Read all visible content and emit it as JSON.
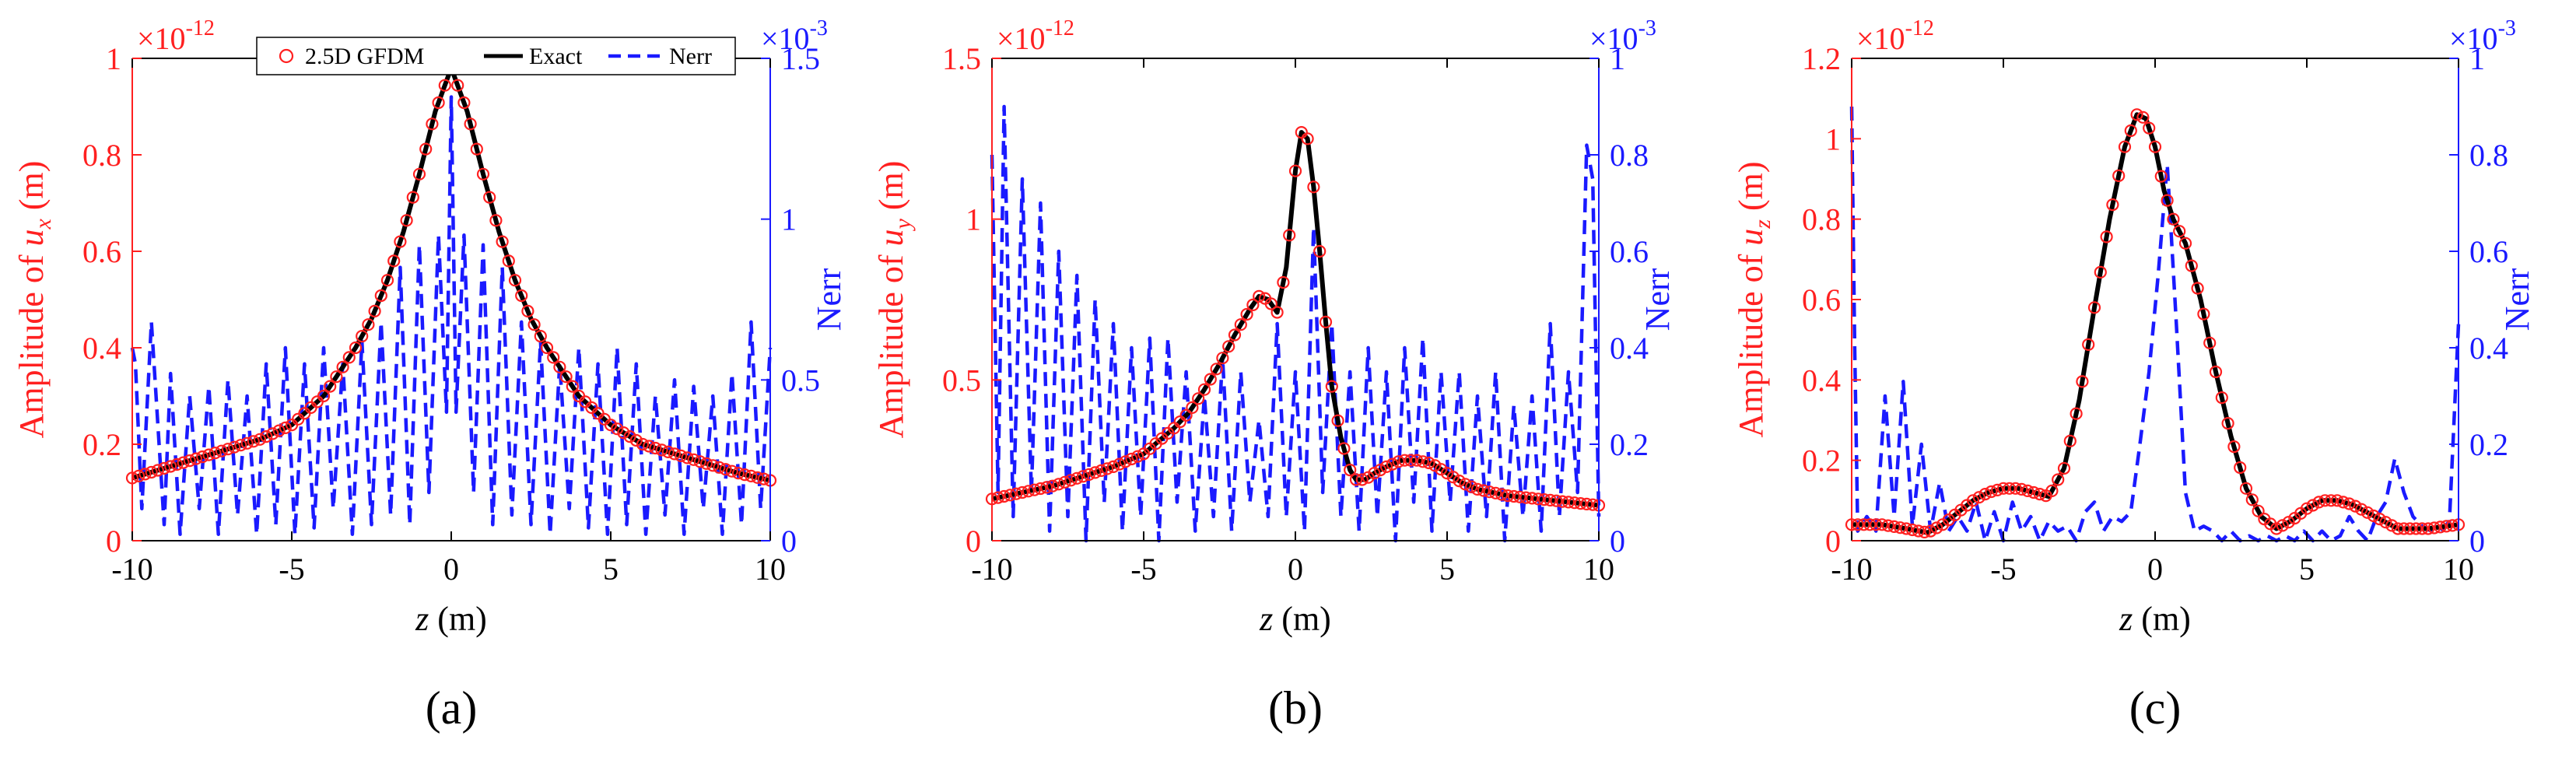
{
  "colors": {
    "amplitude": "#ff2020",
    "exact": "#000000",
    "nerr": "#1a1aff",
    "axis": "#000000"
  },
  "legend": {
    "gfdm": "2.5D GFDM",
    "exact": "Exact",
    "nerr": "Nerr"
  },
  "chart_data": [
    {
      "type": "line",
      "caption": "(a)",
      "xlabel_var": "z",
      "xlabel_unit": " (m)",
      "ylabel_left_prefix": "Amplitude of ",
      "ylabel_left_var": "u",
      "ylabel_left_sub": "x",
      "ylabel_left_unit": " (m)",
      "ylabel_right": "Nerr",
      "left_multiplier": "×10",
      "left_exponent": "-12",
      "right_multiplier": "×10",
      "right_exponent": "-3",
      "xlim": [
        -10,
        10
      ],
      "ylim_left": [
        0,
        1.0
      ],
      "ylim_right": [
        0,
        1.5
      ],
      "xticks": [
        -10,
        -5,
        0,
        5,
        10
      ],
      "xtick_labels": [
        "-10",
        "-5",
        "0",
        "5",
        "10"
      ],
      "yticks_left": [
        0,
        0.2,
        0.4,
        0.6,
        0.8,
        1.0
      ],
      "ytick_labels_left": [
        "0",
        "0.2",
        "0.4",
        "0.6",
        "0.8",
        "1"
      ],
      "yticks_right": [
        0,
        0.5,
        1.0,
        1.5
      ],
      "ytick_labels_right": [
        "0",
        "0.5",
        "1",
        "1.5"
      ],
      "has_legend": true,
      "series": [
        {
          "name": "Exact",
          "x": [
            -10,
            -9,
            -8,
            -7,
            -6,
            -5,
            -4,
            -3,
            -2.5,
            -2,
            -1.5,
            -1,
            -0.5,
            0,
            0.5,
            1,
            1.5,
            2,
            2.5,
            3,
            4,
            5,
            6,
            7,
            8,
            9,
            10
          ],
          "values": [
            0.13,
            0.15,
            0.17,
            0.19,
            0.21,
            0.24,
            0.3,
            0.4,
            0.46,
            0.54,
            0.64,
            0.76,
            0.89,
            0.98,
            0.89,
            0.76,
            0.64,
            0.54,
            0.46,
            0.4,
            0.3,
            0.24,
            0.2,
            0.18,
            0.16,
            0.14,
            0.125
          ]
        },
        {
          "name": "Nerr",
          "x": [
            -10,
            -9.9,
            -9.7,
            -9.4,
            -9.0,
            -8.8,
            -8.5,
            -8.2,
            -7.9,
            -7.6,
            -7.3,
            -7.0,
            -6.7,
            -6.4,
            -6.1,
            -5.8,
            -5.5,
            -5.2,
            -4.9,
            -4.6,
            -4.3,
            -4.0,
            -3.7,
            -3.4,
            -3.1,
            -2.8,
            -2.5,
            -2.2,
            -1.9,
            -1.6,
            -1.3,
            -1.0,
            -0.7,
            -0.4,
            -0.15,
            0.0,
            0.15,
            0.4,
            0.7,
            1.0,
            1.3,
            1.6,
            1.9,
            2.2,
            2.5,
            2.8,
            3.1,
            3.4,
            3.7,
            4.0,
            4.3,
            4.6,
            4.9,
            5.2,
            5.5,
            5.8,
            6.1,
            6.4,
            6.7,
            7.0,
            7.3,
            7.6,
            7.9,
            8.2,
            8.5,
            8.8,
            9.1,
            9.4,
            9.7,
            10.0
          ],
          "values": [
            0.6,
            0.55,
            0.1,
            0.68,
            0.05,
            0.52,
            0.02,
            0.45,
            0.1,
            0.48,
            0.02,
            0.5,
            0.08,
            0.45,
            0.02,
            0.55,
            0.05,
            0.6,
            0.02,
            0.55,
            0.04,
            0.6,
            0.1,
            0.55,
            0.02,
            0.62,
            0.05,
            0.68,
            0.08,
            0.85,
            0.05,
            0.92,
            0.15,
            0.95,
            0.4,
            1.38,
            0.4,
            0.95,
            0.15,
            0.92,
            0.05,
            0.85,
            0.08,
            0.68,
            0.05,
            0.62,
            0.02,
            0.55,
            0.1,
            0.6,
            0.04,
            0.55,
            0.02,
            0.6,
            0.05,
            0.55,
            0.02,
            0.45,
            0.08,
            0.5,
            0.02,
            0.48,
            0.1,
            0.45,
            0.02,
            0.52,
            0.05,
            0.68,
            0.1,
            0.6
          ]
        }
      ]
    },
    {
      "type": "line",
      "caption": "(b)",
      "xlabel_var": "z",
      "xlabel_unit": " (m)",
      "ylabel_left_prefix": "Amplitude of ",
      "ylabel_left_var": "u",
      "ylabel_left_sub": "y",
      "ylabel_left_unit": " (m)",
      "ylabel_right": "Nerr",
      "left_multiplier": "×10",
      "left_exponent": "-12",
      "right_multiplier": "×10",
      "right_exponent": "-3",
      "xlim": [
        -10,
        10
      ],
      "ylim_left": [
        0,
        1.5
      ],
      "ylim_right": [
        0,
        1.0
      ],
      "xticks": [
        -10,
        -5,
        0,
        5,
        10
      ],
      "xtick_labels": [
        "-10",
        "-5",
        "0",
        "5",
        "10"
      ],
      "yticks_left": [
        0,
        0.5,
        1.0,
        1.5
      ],
      "ytick_labels_left": [
        "0",
        "0.5",
        "1",
        "1.5"
      ],
      "yticks_right": [
        0,
        0.2,
        0.4,
        0.6,
        0.8,
        1.0
      ],
      "ytick_labels_right": [
        "0",
        "0.2",
        "0.4",
        "0.6",
        "0.8",
        "1"
      ],
      "has_legend": false,
      "series": [
        {
          "name": "Exact",
          "x": [
            -10,
            -9,
            -8,
            -7,
            -6,
            -5,
            -4,
            -3.5,
            -3,
            -2.5,
            -2,
            -1.5,
            -1.2,
            -0.9,
            -0.6,
            -0.3,
            0,
            0.2,
            0.4,
            0.6,
            0.8,
            1.0,
            1.2,
            1.5,
            1.8,
            2.0,
            2.3,
            2.6,
            3,
            3.5,
            4,
            4.5,
            5,
            5.5,
            6,
            7,
            8,
            9,
            10
          ],
          "values": [
            0.13,
            0.15,
            0.17,
            0.2,
            0.23,
            0.27,
            0.35,
            0.4,
            0.47,
            0.55,
            0.64,
            0.72,
            0.76,
            0.75,
            0.71,
            0.85,
            1.15,
            1.27,
            1.25,
            1.1,
            0.9,
            0.68,
            0.48,
            0.32,
            0.22,
            0.19,
            0.19,
            0.21,
            0.23,
            0.25,
            0.25,
            0.24,
            0.21,
            0.18,
            0.16,
            0.14,
            0.13,
            0.12,
            0.11
          ]
        },
        {
          "name": "Nerr",
          "x": [
            -10,
            -9.8,
            -9.6,
            -9.3,
            -9.0,
            -8.7,
            -8.4,
            -8.1,
            -7.8,
            -7.5,
            -7.2,
            -6.9,
            -6.6,
            -6.3,
            -6.0,
            -5.7,
            -5.4,
            -5.1,
            -4.8,
            -4.5,
            -4.2,
            -3.9,
            -3.6,
            -3.3,
            -3.0,
            -2.7,
            -2.4,
            -2.1,
            -1.8,
            -1.5,
            -1.2,
            -0.9,
            -0.6,
            -0.3,
            0.0,
            0.3,
            0.6,
            0.9,
            1.2,
            1.5,
            1.8,
            2.1,
            2.4,
            2.7,
            3.0,
            3.3,
            3.6,
            3.9,
            4.2,
            4.5,
            4.8,
            5.1,
            5.4,
            5.7,
            6.0,
            6.3,
            6.6,
            6.9,
            7.2,
            7.5,
            7.8,
            8.1,
            8.4,
            8.7,
            9.0,
            9.3,
            9.6,
            9.8,
            10.0
          ],
          "values": [
            0.8,
            0.1,
            0.9,
            0.05,
            0.75,
            0.1,
            0.7,
            0.02,
            0.6,
            0.05,
            0.55,
            0.0,
            0.5,
            0.08,
            0.45,
            0.02,
            0.4,
            0.05,
            0.42,
            0.0,
            0.42,
            0.08,
            0.35,
            0.02,
            0.3,
            0.05,
            0.38,
            0.02,
            0.35,
            0.08,
            0.25,
            0.05,
            0.45,
            0.05,
            0.35,
            0.02,
            0.65,
            0.1,
            0.45,
            0.05,
            0.35,
            0.02,
            0.4,
            0.05,
            0.35,
            0.0,
            0.4,
            0.08,
            0.42,
            0.02,
            0.35,
            0.08,
            0.35,
            0.02,
            0.3,
            0.05,
            0.35,
            0.0,
            0.28,
            0.05,
            0.3,
            0.02,
            0.45,
            0.05,
            0.35,
            0.1,
            0.82,
            0.75,
            0.05
          ]
        }
      ]
    },
    {
      "type": "line",
      "caption": "(c)",
      "xlabel_var": "z",
      "xlabel_unit": " (m)",
      "ylabel_left_prefix": "Amplitude of ",
      "ylabel_left_var": "u",
      "ylabel_left_sub": "z",
      "ylabel_left_unit": " (m)",
      "ylabel_right": "Nerr",
      "left_multiplier": "×10",
      "left_exponent": "-12",
      "right_multiplier": "×10",
      "right_exponent": "-3",
      "xlim": [
        -10,
        10
      ],
      "ylim_left": [
        0,
        1.2
      ],
      "ylim_right": [
        0,
        1.0
      ],
      "xticks": [
        -10,
        -5,
        0,
        5,
        10
      ],
      "xtick_labels": [
        "-10",
        "-5",
        "0",
        "5",
        "10"
      ],
      "yticks_left": [
        0,
        0.2,
        0.4,
        0.6,
        0.8,
        1.0,
        1.2
      ],
      "ytick_labels_left": [
        "0",
        "0.2",
        "0.4",
        "0.6",
        "0.8",
        "1",
        "1.2"
      ],
      "yticks_right": [
        0,
        0.2,
        0.4,
        0.6,
        0.8,
        1.0
      ],
      "ytick_labels_right": [
        "0",
        "0.2",
        "0.4",
        "0.6",
        "0.8",
        "1"
      ],
      "has_legend": false,
      "series": [
        {
          "name": "Exact",
          "x": [
            -10,
            -9,
            -8.2,
            -7.5,
            -7,
            -6.5,
            -6,
            -5.5,
            -5,
            -4.5,
            -4,
            -3.5,
            -3,
            -2.5,
            -2,
            -1.5,
            -1,
            -0.6,
            -0.3,
            0,
            0.3,
            0.6,
            1.0,
            1.5,
            2,
            2.5,
            3,
            3.5,
            4,
            4.5,
            5,
            5.5,
            6,
            6.5,
            7,
            7.5,
            8,
            9,
            10
          ],
          "values": [
            0.04,
            0.04,
            0.03,
            0.02,
            0.04,
            0.07,
            0.1,
            0.12,
            0.13,
            0.13,
            0.12,
            0.11,
            0.18,
            0.35,
            0.58,
            0.8,
            0.98,
            1.06,
            1.05,
            0.98,
            0.87,
            0.8,
            0.74,
            0.6,
            0.42,
            0.26,
            0.13,
            0.06,
            0.03,
            0.05,
            0.08,
            0.1,
            0.1,
            0.09,
            0.07,
            0.05,
            0.03,
            0.03,
            0.04
          ]
        },
        {
          "name": "Nerr",
          "x": [
            -10,
            -9.9,
            -9.8,
            -9.5,
            -9.2,
            -8.9,
            -8.6,
            -8.3,
            -8.0,
            -7.7,
            -7.4,
            -7.1,
            -6.8,
            -6.5,
            -6.2,
            -5.9,
            -5.6,
            -5.3,
            -5.0,
            -4.7,
            -4.4,
            -4.1,
            -3.8,
            -3.5,
            -3.2,
            -2.9,
            -2.6,
            -2.3,
            -2.0,
            -1.7,
            -1.4,
            -1.1,
            -0.8,
            -0.5,
            -0.2,
            0.1,
            0.4,
            0.7,
            1.0,
            1.3,
            1.6,
            1.9,
            2.2,
            2.5,
            2.8,
            3.1,
            3.4,
            3.7,
            4.0,
            4.3,
            4.6,
            4.9,
            5.2,
            5.5,
            5.8,
            6.1,
            6.4,
            6.7,
            7.0,
            7.3,
            7.6,
            7.9,
            8.2,
            8.5,
            8.8,
            9.1,
            9.4,
            9.7,
            10.0
          ],
          "values": [
            0.9,
            0.4,
            0.02,
            0.05,
            0.02,
            0.3,
            0.05,
            0.33,
            0.03,
            0.2,
            0.02,
            0.12,
            0.02,
            0.05,
            0.02,
            0.08,
            0.0,
            0.06,
            0.0,
            0.08,
            0.02,
            0.05,
            0.0,
            0.04,
            0.02,
            0.03,
            0.0,
            0.06,
            0.08,
            0.02,
            0.05,
            0.04,
            0.06,
            0.2,
            0.35,
            0.55,
            0.78,
            0.45,
            0.1,
            0.02,
            0.03,
            0.02,
            0.0,
            0.02,
            0.0,
            0.01,
            0.0,
            0.01,
            0.0,
            0.01,
            0.0,
            0.02,
            0.0,
            0.02,
            0.0,
            0.01,
            0.05,
            0.02,
            0.0,
            0.05,
            0.08,
            0.17,
            0.1,
            0.05,
            0.03,
            0.02,
            0.02,
            0.04,
            0.45
          ]
        }
      ]
    }
  ]
}
